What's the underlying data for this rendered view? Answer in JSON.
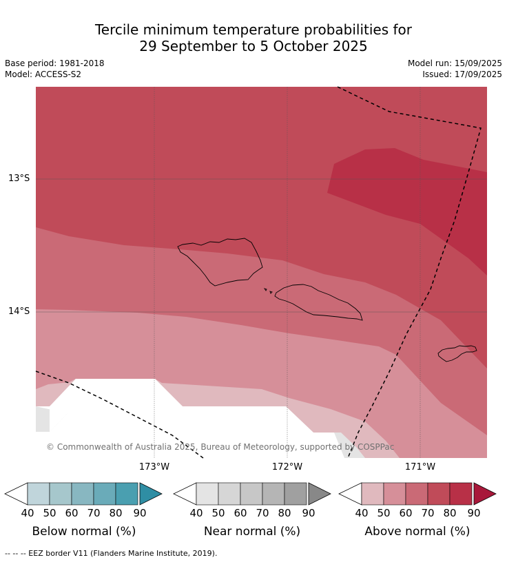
{
  "title": {
    "line1": "Tercile minimum temperature probabilities for",
    "line2": "29 September to 5 October 2025"
  },
  "meta": {
    "base_period": "Base period: 1981-2018",
    "model": "Model: ACCESS-S2",
    "model_run": "Model run: 15/09/2025",
    "issued": "Issued: 17/09/2025"
  },
  "map": {
    "lat_labels": [
      "13°S",
      "14°S"
    ],
    "lon_labels": [
      "173°W",
      "172°W",
      "171°W"
    ],
    "credit": "© Commonwealth of Australia 2025, Bureau of Meteorology, supported by COSPPac",
    "eez_style": "dashed black line",
    "colors": {
      "above_40": "#e0b9be",
      "above_50": "#d68f99",
      "above_60": "#ca6a76",
      "above_70": "#c04b59",
      "above_80": "#b83047",
      "near_40": "#e4e4e4"
    }
  },
  "colorbars": [
    {
      "label": "Below normal (%)",
      "ticks": [
        "40",
        "50",
        "60",
        "70",
        "80",
        "90"
      ],
      "colors": [
        "#c0d5db",
        "#a6c7cc",
        "#88b7c1",
        "#6aabb9",
        "#4a9fb0",
        "#2f8ea4"
      ]
    },
    {
      "label": "Near normal (%)",
      "ticks": [
        "40",
        "50",
        "60",
        "70",
        "80",
        "90"
      ],
      "colors": [
        "#e4e4e4",
        "#d6d6d6",
        "#c7c7c7",
        "#b5b5b5",
        "#a0a0a0",
        "#888888"
      ]
    },
    {
      "label": "Above normal (%)",
      "ticks": [
        "40",
        "50",
        "60",
        "70",
        "80",
        "90"
      ],
      "colors": [
        "#e0b9be",
        "#d68f99",
        "#ca6a76",
        "#c04b59",
        "#b83047",
        "#a8183a"
      ]
    }
  ],
  "footer": "-- -- -- EEZ border V11 (Flanders Marine Institute, 2019)."
}
